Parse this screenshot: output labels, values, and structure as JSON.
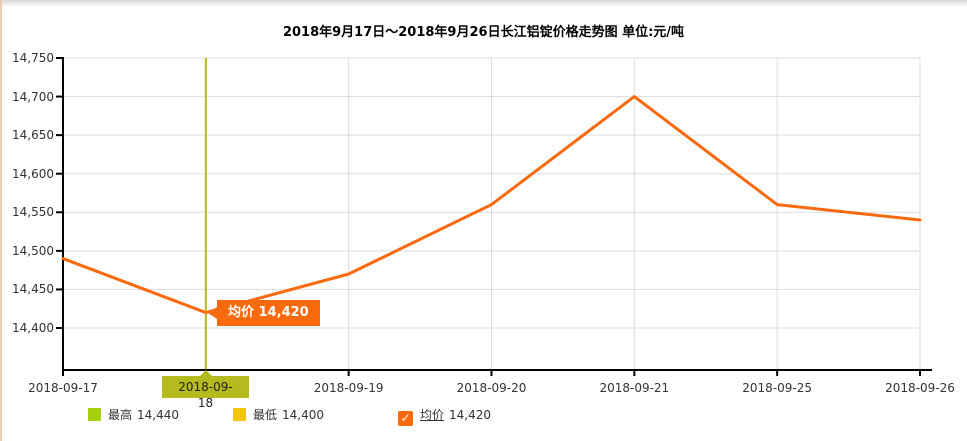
{
  "page": {
    "title": "2018年9月17日～2018年9月26日长江铝锭价格走势图 单位:元/吨"
  },
  "chart_data": {
    "type": "line",
    "title": "2018年9月17日～2018年9月26日长江铝锭价格走势图",
    "unit_label": "单位:元/吨",
    "x": [
      "2018-09-17",
      "2018-09-18",
      "2018-09-19",
      "2018-09-20",
      "2018-09-21",
      "2018-09-25",
      "2018-09-26"
    ],
    "series": [
      {
        "name": "均价",
        "color": "#f96a0e",
        "values": [
          14490,
          14420,
          14470,
          14560,
          14700,
          14560,
          14540
        ]
      }
    ],
    "yticks": [
      14750,
      14700,
      14650,
      14600,
      14550,
      14500,
      14450,
      14400
    ],
    "ylim": [
      14345,
      14750
    ],
    "grid": true,
    "legend_position": "bottom",
    "selected_x_index": 1
  },
  "tooltip": {
    "date": "2018-09-18",
    "label": "均价",
    "value": "14,420"
  },
  "legend": {
    "items": [
      {
        "name": "最高",
        "value": "14,440",
        "color": "#a6d00d",
        "type": "swatch"
      },
      {
        "name": "最低",
        "value": "14,400",
        "color": "#f5c50a",
        "type": "swatch"
      },
      {
        "name": "均价",
        "value": "14,420",
        "color": "#f96a0e",
        "type": "checkbox",
        "checked": true
      }
    ]
  },
  "icons": {
    "check": "✓"
  },
  "colors": {
    "line": "#f96a0e",
    "tooltip_bg": "#f96a0e",
    "crosshair": "#b5ba1f",
    "date_tooltip_bg": "#b5ba1f",
    "grid": "#dddddd",
    "axis": "#000000",
    "legend_high": "#a6d00d",
    "legend_low": "#f5c50a",
    "left_border": "#f3cdb0"
  }
}
